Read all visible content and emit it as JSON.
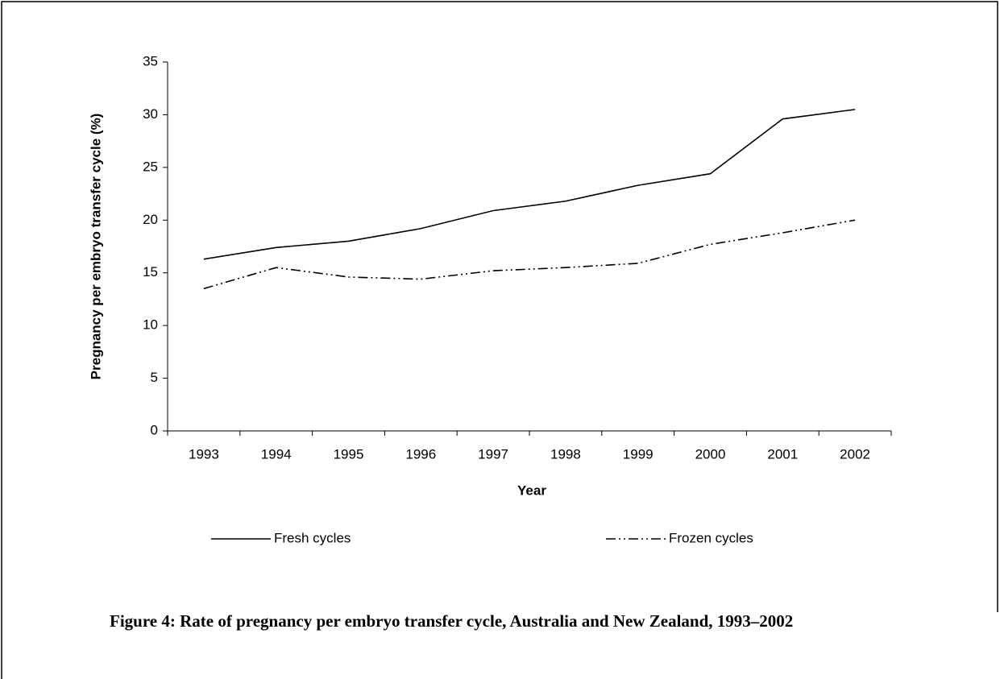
{
  "chart_data": {
    "type": "line",
    "x_label": "Year",
    "y_label": "Pregnancy per embryo transfer cycle (%)",
    "caption": "Figure 4: Rate of pregnancy per embryo transfer cycle, Australia and New Zealand, 1993–2002",
    "categories": [
      "1993",
      "1994",
      "1995",
      "1996",
      "1997",
      "1998",
      "1999",
      "2000",
      "2001",
      "2002"
    ],
    "series": [
      {
        "name": "Fresh cycles",
        "color": "#000000",
        "style": "solid",
        "values": [
          16.3,
          17.4,
          18.0,
          19.2,
          20.9,
          21.8,
          23.3,
          24.4,
          29.6,
          30.5
        ]
      },
      {
        "name": "Frozen cycles",
        "color": "#000000",
        "style": "dashdotdot",
        "values": [
          13.5,
          15.5,
          14.6,
          14.4,
          15.2,
          15.5,
          15.9,
          17.7,
          18.8,
          20.0
        ]
      }
    ],
    "ylim": [
      0,
      35
    ],
    "yticks": [
      0,
      5,
      10,
      15,
      20,
      25,
      30,
      35
    ],
    "grid": false,
    "legend": "bottom"
  }
}
